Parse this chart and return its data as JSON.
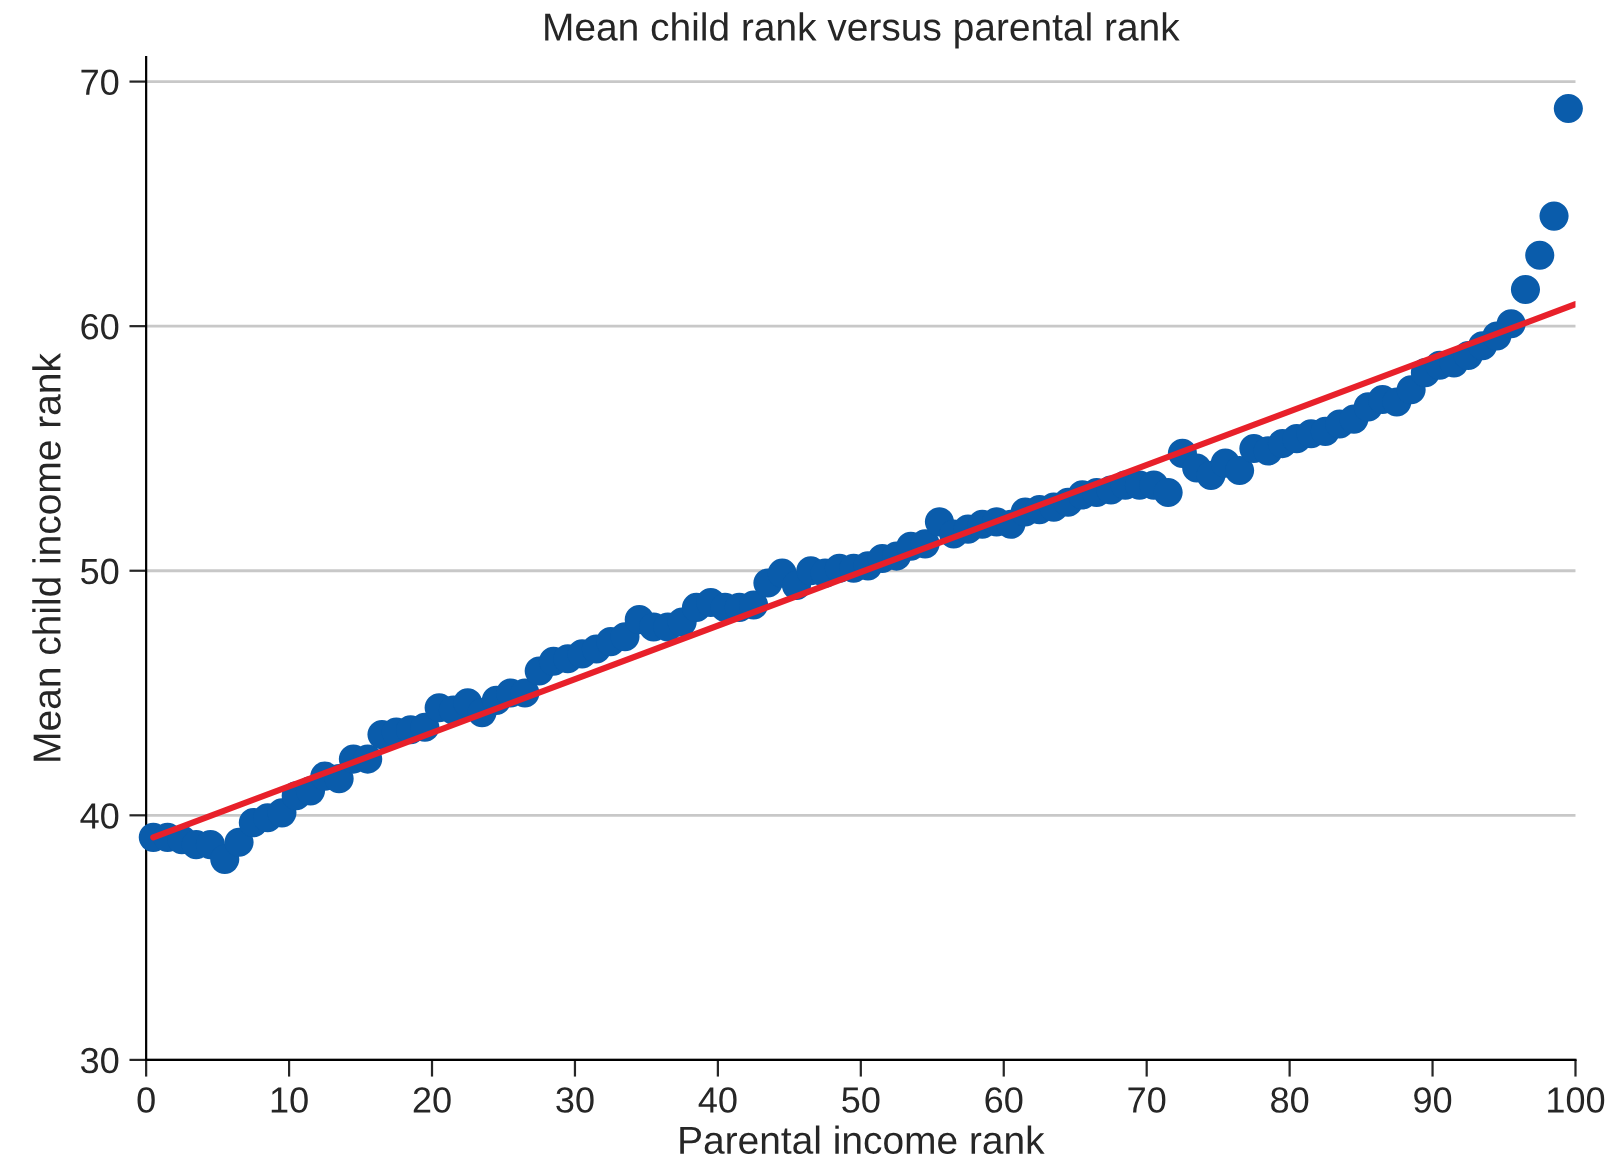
{
  "chart_data": {
    "type": "scatter",
    "title": "Mean child rank versus parental rank",
    "xlabel": "Parental income rank",
    "ylabel": "Mean child income rank",
    "xlim": [
      0,
      100
    ],
    "xticks": [
      0,
      10,
      20,
      30,
      40,
      50,
      60,
      70,
      80,
      90,
      100
    ],
    "ylim": [
      30,
      71
    ],
    "yticks": [
      30,
      40,
      50,
      60,
      70
    ],
    "grid": "y",
    "series": [
      {
        "marker": "circle",
        "color": "#0a5cab",
        "x": [
          0.5,
          1.5,
          2.5,
          3.5,
          4.5,
          5.5,
          6.5,
          7.5,
          8.5,
          9.5,
          10.5,
          11.5,
          12.5,
          13.5,
          14.5,
          15.5,
          16.5,
          17.5,
          18.5,
          19.5,
          20.5,
          21.5,
          22.5,
          23.5,
          24.5,
          25.5,
          26.5,
          27.5,
          28.5,
          29.5,
          30.5,
          31.5,
          32.5,
          33.5,
          34.5,
          35.5,
          36.5,
          37.5,
          38.5,
          39.5,
          40.5,
          41.5,
          42.5,
          43.5,
          44.5,
          45.5,
          46.5,
          47.5,
          48.5,
          49.5,
          50.5,
          51.5,
          52.5,
          53.5,
          54.5,
          55.5,
          56.5,
          57.5,
          58.5,
          59.5,
          60.5,
          61.5,
          62.5,
          63.5,
          64.5,
          65.5,
          66.5,
          67.5,
          68.5,
          69.5,
          70.5,
          71.5,
          72.5,
          73.5,
          74.5,
          75.5,
          76.5,
          77.5,
          78.5,
          79.5,
          80.5,
          81.5,
          82.5,
          83.5,
          84.5,
          85.5,
          86.5,
          87.5,
          88.5,
          89.5,
          90.5,
          91.5,
          92.5,
          93.5,
          94.5,
          95.5,
          96.5,
          97.5,
          98.5,
          99.5
        ],
        "values": [
          39.1,
          39.1,
          39.0,
          38.8,
          38.8,
          38.2,
          38.9,
          39.7,
          39.9,
          40.1,
          40.8,
          41.0,
          41.6,
          41.5,
          42.3,
          42.3,
          43.3,
          43.4,
          43.5,
          43.6,
          44.4,
          44.3,
          44.6,
          44.2,
          44.7,
          45.0,
          45.0,
          45.9,
          46.3,
          46.4,
          46.6,
          46.8,
          47.1,
          47.3,
          48.0,
          47.7,
          47.7,
          47.9,
          48.5,
          48.7,
          48.5,
          48.5,
          48.6,
          49.5,
          49.9,
          49.4,
          50.0,
          49.9,
          50.1,
          50.1,
          50.2,
          50.5,
          50.6,
          51.0,
          51.1,
          52.0,
          51.5,
          51.7,
          51.9,
          52.0,
          51.9,
          52.4,
          52.5,
          52.6,
          52.8,
          53.1,
          53.2,
          53.3,
          53.5,
          53.5,
          53.5,
          53.2,
          54.8,
          54.2,
          53.9,
          54.4,
          54.1,
          55.0,
          54.9,
          55.2,
          55.4,
          55.6,
          55.7,
          56.0,
          56.2,
          56.7,
          57.0,
          56.9,
          57.4,
          58.1,
          58.4,
          58.5,
          58.8,
          59.2,
          59.6,
          60.1,
          61.5,
          62.9,
          64.5,
          68.9
        ]
      },
      {
        "type": "line",
        "color": "#e8202a",
        "x": [
          0.5,
          100
        ],
        "values": [
          39.1,
          60.9
        ],
        "marker": "none",
        "line_style": "solid"
      }
    ]
  }
}
